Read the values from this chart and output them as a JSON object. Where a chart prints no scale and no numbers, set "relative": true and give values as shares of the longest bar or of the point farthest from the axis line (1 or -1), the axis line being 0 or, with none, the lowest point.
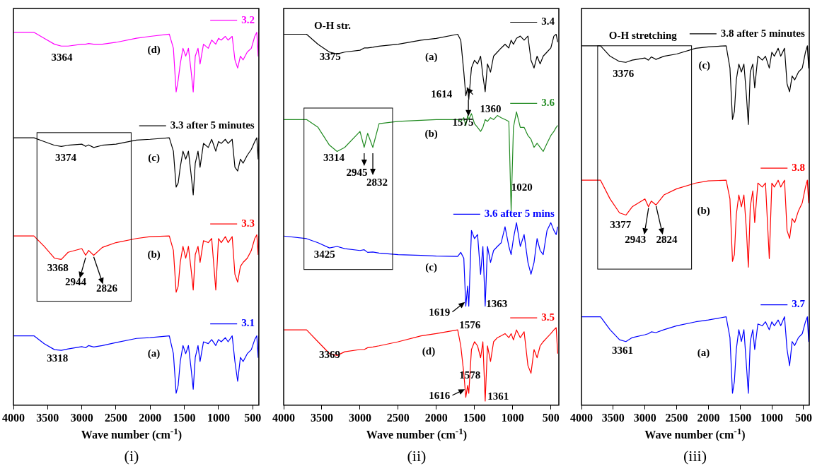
{
  "chart_data": [
    {
      "type": "line",
      "title": "(i)",
      "xlabel": "Wave number (cm$^{-1}$)",
      "relative": true,
      "grid": false,
      "marker": "none",
      "legend": "right",
      "xlim": [
        4000,
        410
      ],
      "xticks": [
        4000,
        3500,
        3000,
        2500,
        2000,
        1500,
        1000,
        500
      ],
      "x": [
        4000,
        3700,
        3550,
        3400,
        3300,
        3200,
        3000,
        2944,
        2900,
        2826,
        2700,
        2500,
        2200,
        2000,
        1720,
        1660,
        1620,
        1590,
        1560,
        1520,
        1480,
        1440,
        1400,
        1370,
        1340,
        1300,
        1270,
        1220,
        1150,
        1100,
        1040,
        1000,
        960,
        900,
        860,
        800,
        760,
        720,
        680,
        640,
        580,
        520,
        470,
        440,
        420,
        410
      ],
      "series": [
        {
          "name": "3.2",
          "color": "#ff00ff",
          "values": [
            1,
            1,
            0.984,
            0.968,
            0.963,
            0.963,
            0.968,
            0.968,
            0.97,
            0.968,
            0.968,
            0.973,
            0.984,
            0.989,
            0.995,
            0.957,
            0.84,
            0.872,
            0.915,
            0.957,
            0.936,
            0.957,
            0.894,
            0.84,
            0.936,
            0.957,
            0.915,
            0.968,
            0.957,
            0.979,
            0.968,
            0.984,
            0.979,
            0.989,
            0.979,
            0.989,
            0.926,
            0.904,
            0.936,
            0.926,
            0.947,
            0.957,
            0.989,
            1,
            0.936,
            1
          ]
        },
        {
          "name": "3.3 after 5 minutes",
          "color": "#000000",
          "values": [
            0.717,
            0.717,
            0.707,
            0.697,
            0.694,
            0.697,
            0.7,
            0.694,
            0.698,
            0.691,
            0.697,
            0.7,
            0.711,
            0.713,
            0.717,
            0.681,
            0.585,
            0.596,
            0.638,
            0.681,
            0.66,
            0.681,
            0.617,
            0.564,
            0.649,
            0.681,
            0.638,
            0.702,
            0.691,
            0.713,
            0.681,
            0.707,
            0.702,
            0.713,
            0.702,
            0.713,
            0.638,
            0.628,
            0.66,
            0.649,
            0.67,
            0.686,
            0.707,
            0.717,
            0.66,
            0.717
          ]
        },
        {
          "name": "3.3",
          "color": "#ff0000",
          "values": [
            0.454,
            0.454,
            0.426,
            0.394,
            0.391,
            0.41,
            0.42,
            0.402,
            0.415,
            0.402,
            0.423,
            0.436,
            0.447,
            0.452,
            0.454,
            0.415,
            0.303,
            0.319,
            0.383,
            0.426,
            0.394,
            0.426,
            0.362,
            0.309,
            0.404,
            0.426,
            0.383,
            0.441,
            0.436,
            0.447,
            0.309,
            0.447,
            0.436,
            0.452,
            0.436,
            0.452,
            0.351,
            0.33,
            0.372,
            0.383,
            0.394,
            0.415,
            0.447,
            0.457,
            0.404,
            0.454
          ]
        },
        {
          "name": "3.1",
          "color": "#0000ff",
          "values": [
            0.186,
            0.186,
            0.165,
            0.149,
            0.147,
            0.151,
            0.157,
            0.154,
            0.16,
            0.156,
            0.16,
            0.168,
            0.179,
            0.181,
            0.186,
            0.138,
            0.032,
            0.053,
            0.117,
            0.16,
            0.138,
            0.16,
            0.096,
            0.043,
            0.128,
            0.16,
            0.117,
            0.17,
            0.165,
            0.176,
            0.16,
            0.176,
            0.17,
            0.181,
            0.17,
            0.186,
            0.117,
            0.064,
            0.128,
            0.117,
            0.138,
            0.149,
            0.176,
            0.186,
            0.128,
            0.186
          ]
        }
      ],
      "annotations": [
        "3364",
        "(d)",
        "3374",
        "(c)",
        "3368",
        "2944",
        "2826",
        "(b)",
        "3318",
        "(a)"
      ]
    },
    {
      "type": "line",
      "title": "(ii)",
      "xlabel": "Wave number (cm$^{-1}$)",
      "relative": true,
      "grid": false,
      "marker": "none",
      "legend": "right",
      "xlim": [
        4000,
        395
      ],
      "xticks": [
        4000,
        3500,
        3000,
        2500,
        2000,
        1500,
        1000,
        500
      ],
      "x": [
        4000,
        3700,
        3550,
        3400,
        3300,
        3200,
        3000,
        2945,
        2900,
        2832,
        2750,
        2500,
        2200,
        2000,
        1720,
        1680,
        1640,
        1614,
        1590,
        1575,
        1540,
        1500,
        1460,
        1420,
        1390,
        1360,
        1330,
        1290,
        1250,
        1200,
        1150,
        1100,
        1050,
        1020,
        990,
        950,
        900,
        850,
        800,
        760,
        720,
        680,
        640,
        600,
        550,
        500,
        460,
        430,
        410
      ],
      "series": [
        {
          "name": "3.4",
          "color": "#000000",
          "values": [
            1,
            1,
            0.973,
            0.952,
            0.947,
            0.952,
            0.957,
            0.963,
            0.963,
            0.965,
            0.968,
            0.973,
            0.984,
            0.989,
            1,
            0.984,
            0.898,
            0.834,
            0.856,
            0.824,
            0.909,
            0.93,
            0.92,
            0.941,
            0.888,
            0.845,
            0.92,
            0.898,
            0.941,
            0.952,
            0.963,
            0.973,
            0.963,
            0.984,
            0.973,
            0.989,
            0.995,
            0.984,
            0.995,
            0.93,
            0.909,
            0.941,
            0.92,
            0.941,
            0.952,
            0.963,
            0.995,
            1,
            0.979
          ]
        },
        {
          "name": "3.6",
          "color": "#228b22",
          "values": [
            0.77,
            0.77,
            0.749,
            0.701,
            0.684,
            0.695,
            0.738,
            0.695,
            0.733,
            0.695,
            0.759,
            0.765,
            0.768,
            0.77,
            0.77,
            0.765,
            0.775,
            0.754,
            0.781,
            0.77,
            0.786,
            0.759,
            0.749,
            0.738,
            0.749,
            0.77,
            0.765,
            0.775,
            0.77,
            0.781,
            0.775,
            0.77,
            0.765,
            0.524,
            0.749,
            0.791,
            0.749,
            0.749,
            0.727,
            0.717,
            0.695,
            0.706,
            0.695,
            0.684,
            0.706,
            0.727,
            0.738,
            0.749,
            0.754
          ]
        },
        {
          "name": "3.6 after 5 mins",
          "color": "#0000ff",
          "values": [
            0.456,
            0.449,
            0.438,
            0.424,
            0.428,
            0.422,
            0.417,
            0.419,
            0.412,
            0.413,
            0.41,
            0.406,
            0.404,
            0.402,
            0.401,
            0.412,
            0.396,
            0.267,
            0.321,
            0.267,
            0.471,
            0.449,
            0.46,
            0.353,
            0.428,
            0.267,
            0.428,
            0.385,
            0.417,
            0.428,
            0.438,
            0.481,
            0.428,
            0.406,
            0.449,
            0.492,
            0.428,
            0.46,
            0.385,
            0.353,
            0.385,
            0.449,
            0.417,
            0.406,
            0.471,
            0.492,
            0.471,
            0.46,
            0.481
          ]
        },
        {
          "name": "3.5",
          "color": "#ff0000",
          "values": [
            0.203,
            0.203,
            0.171,
            0.139,
            0.134,
            0.144,
            0.15,
            0.15,
            0.155,
            0.157,
            0.16,
            0.171,
            0.187,
            0.193,
            0.203,
            0.16,
            0.086,
            0.021,
            0.053,
            0.032,
            0.15,
            0.171,
            0.16,
            0.128,
            0.171,
            0.011,
            0.16,
            0.118,
            0.171,
            0.182,
            0.187,
            0.193,
            0.182,
            0.193,
            0.176,
            0.203,
            0.182,
            0.198,
            0.107,
            0.086,
            0.15,
            0.128,
            0.16,
            0.171,
            0.182,
            0.193,
            0.203,
            0.209,
            0.139
          ]
        }
      ],
      "annotations": [
        "O-H str.",
        "3375",
        "(a)",
        "1614",
        "1575",
        "1360",
        "(b)",
        "3314",
        "2945",
        "2832",
        "1020",
        "3425",
        "(c)",
        "1619",
        "1576",
        "1363",
        "(d)",
        "3369",
        "1616",
        "1578",
        "1361"
      ]
    },
    {
      "type": "line",
      "title": "(iii)",
      "xlabel": "Wave number (cm$^{-1}$)",
      "relative": true,
      "grid": false,
      "marker": "none",
      "legend": "right",
      "xlim": [
        4000,
        410
      ],
      "xticks": [
        4000,
        3500,
        3000,
        2500,
        2000,
        1500,
        1000,
        500
      ],
      "x": [
        4000,
        3700,
        3550,
        3400,
        3300,
        3200,
        3000,
        2944,
        2900,
        2826,
        2700,
        2500,
        2200,
        2000,
        1720,
        1660,
        1620,
        1590,
        1560,
        1520,
        1480,
        1440,
        1400,
        1370,
        1340,
        1300,
        1270,
        1220,
        1150,
        1100,
        1040,
        1000,
        960,
        900,
        860,
        800,
        760,
        720,
        680,
        640,
        580,
        520,
        470,
        440,
        420,
        410
      ],
      "series": [
        {
          "name": "3.8 after 5 minutes",
          "color": "#000000",
          "values": [
            1,
            1,
            0.971,
            0.956,
            0.954,
            0.96,
            0.966,
            0.96,
            0.969,
            0.962,
            0.971,
            0.977,
            0.993,
            0.997,
            1,
            0.938,
            0.795,
            0.817,
            0.905,
            0.949,
            0.927,
            0.949,
            0.861,
            0.781,
            0.927,
            0.949,
            0.883,
            0.971,
            0.96,
            0.971,
            0.938,
            0.982,
            0.971,
            0.993,
            0.971,
            0.993,
            0.894,
            0.872,
            0.916,
            0.905,
            0.927,
            0.938,
            0.982,
            1,
            0.938,
            1
          ]
        },
        {
          "name": "3.8",
          "color": "#ff0000",
          "values": [
            0.626,
            0.626,
            0.574,
            0.535,
            0.529,
            0.552,
            0.574,
            0.552,
            0.568,
            0.557,
            0.585,
            0.602,
            0.618,
            0.624,
            0.626,
            0.574,
            0.4,
            0.419,
            0.53,
            0.585,
            0.552,
            0.585,
            0.486,
            0.384,
            0.552,
            0.596,
            0.508,
            0.618,
            0.607,
            0.618,
            0.408,
            0.618,
            0.607,
            0.626,
            0.607,
            0.626,
            0.486,
            0.464,
            0.519,
            0.508,
            0.541,
            0.563,
            0.607,
            0.626,
            0.563,
            0.626
          ]
        },
        {
          "name": "3.7",
          "color": "#0000ff",
          "values": [
            0.246,
            0.246,
            0.21,
            0.182,
            0.177,
            0.188,
            0.196,
            0.199,
            0.204,
            0.202,
            0.21,
            0.221,
            0.232,
            0.237,
            0.246,
            0.188,
            0.033,
            0.066,
            0.155,
            0.21,
            0.177,
            0.21,
            0.11,
            0.033,
            0.177,
            0.21,
            0.155,
            0.226,
            0.221,
            0.232,
            0.21,
            0.232,
            0.221,
            0.237,
            0.221,
            0.246,
            0.155,
            0.11,
            0.177,
            0.166,
            0.188,
            0.199,
            0.232,
            0.246,
            0.177,
            0.246
          ]
        }
      ],
      "annotations": [
        "O-H stretching",
        "3376",
        "(c)",
        "3377",
        "2943",
        "2824",
        "(b)",
        "3361",
        "(a)"
      ]
    }
  ]
}
